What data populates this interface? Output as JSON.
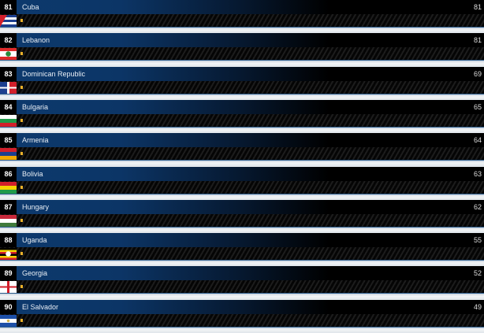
{
  "rows": [
    {
      "rank": "81",
      "country": "Cuba",
      "score": "81",
      "flag": "cuba-flag"
    },
    {
      "rank": "82",
      "country": "Lebanon",
      "score": "81",
      "flag": "lebanon-flag"
    },
    {
      "rank": "83",
      "country": "Dominican Republic",
      "score": "69",
      "flag": "dominican-republic-flag"
    },
    {
      "rank": "84",
      "country": "Bulgaria",
      "score": "65",
      "flag": "bulgaria-flag"
    },
    {
      "rank": "85",
      "country": "Armenia",
      "score": "64",
      "flag": "armenia-flag"
    },
    {
      "rank": "86",
      "country": "Bolivia",
      "score": "63",
      "flag": "bolivia-flag"
    },
    {
      "rank": "87",
      "country": "Hungary",
      "score": "62",
      "flag": "hungary-flag"
    },
    {
      "rank": "88",
      "country": "Uganda",
      "score": "55",
      "flag": "uganda-flag"
    },
    {
      "rank": "89",
      "country": "Georgia",
      "score": "52",
      "flag": "georgia-flag"
    },
    {
      "rank": "90",
      "country": "El Salvador",
      "score": "49",
      "flag": "el-salvador-flag"
    }
  ],
  "colors": {
    "header_blue": "#0d3a6e",
    "marker": "#e9b12a"
  }
}
